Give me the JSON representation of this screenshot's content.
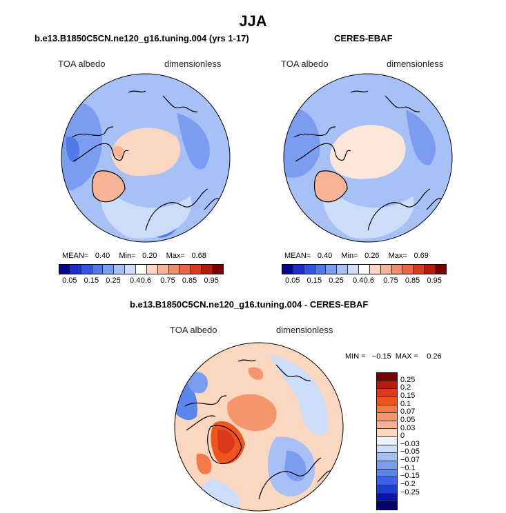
{
  "title": "JJA",
  "panels": [
    {
      "title": "b.e13.B1850C5CN.ne120_g16.tuning.004 (yrs 1-17)",
      "var_label": "TOA albedo",
      "units_label": "dimensionless",
      "stats": {
        "mean_label": "MEAN=",
        "mean": "0.40",
        "min_label": "Min=",
        "min": "0.20",
        "max_label": "Max=",
        "max": "0.68"
      }
    },
    {
      "title": "CERES-EBAF",
      "var_label": "TOA albedo",
      "units_label": "dimensionless",
      "stats": {
        "mean_label": "MEAN=",
        "mean": "0.40",
        "min_label": "Min=",
        "min": "0.26",
        "max_label": "Max=",
        "max": "0.69"
      }
    },
    {
      "title": "b.e13.B1850C5CN.ne120_g16.tuning.004 - CERES-EBAF",
      "var_label": "TOA albedo",
      "units_label": "dimensionless",
      "stats_text": "MIN =   −0.15  MAX =    0.26"
    }
  ],
  "colorbar_abs": {
    "colors": [
      "#08088a",
      "#1c2fc8",
      "#2f56e2",
      "#4f7ae8",
      "#7b9df0",
      "#a7c0f5",
      "#cddcf9",
      "#ffffff",
      "#fbd7c3",
      "#f6b396",
      "#f08c6a",
      "#ea6445",
      "#d93a1e",
      "#b51a0a",
      "#7a0000"
    ],
    "tick_labels": [
      "0.05",
      "0.15",
      "0.25",
      "0.4",
      "0.6",
      "0.75",
      "0.85",
      "0.95"
    ]
  },
  "colorbar_diff": {
    "colors": [
      "#7a0000",
      "#b51a0a",
      "#d93a1e",
      "#f0541f",
      "#f4794b",
      "#f7966c",
      "#fab493",
      "#fcd7c0",
      "#eef2fb",
      "#cddcf9",
      "#a7c0f5",
      "#7b9df0",
      "#5a85ec",
      "#3a62e6",
      "#1c3fd0",
      "#0a16a0",
      "#05056e"
    ],
    "tick_labels": [
      "0.25",
      "0.2",
      "0.15",
      "0.1",
      "0.07",
      "0.05",
      "0.03",
      "0",
      "−0.03",
      "−0.05",
      "−0.07",
      "−0.1",
      "−0.15",
      "−0.2",
      "−0.25"
    ]
  }
}
